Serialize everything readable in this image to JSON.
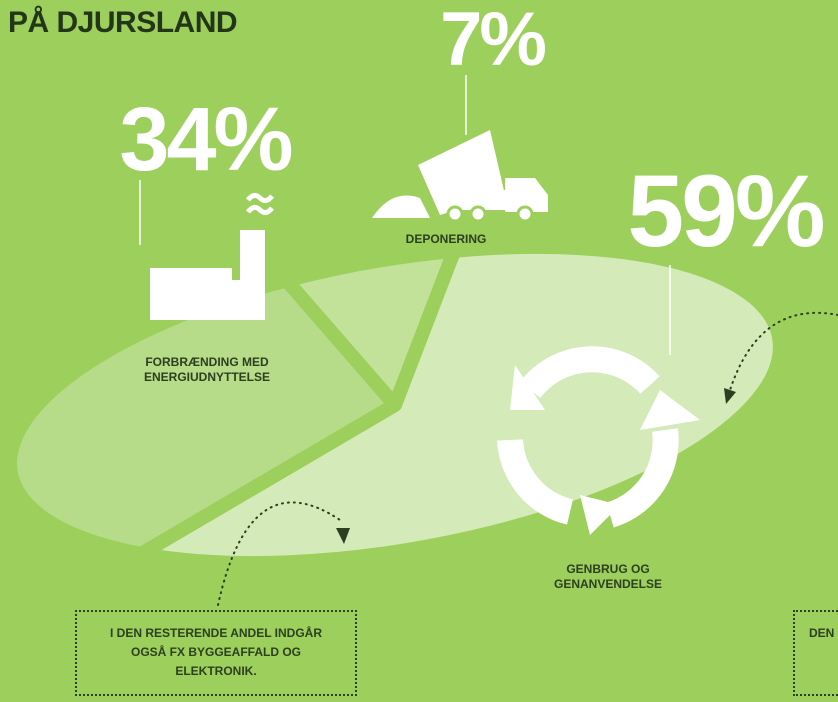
{
  "chart_data": {
    "type": "pie",
    "title": "PÅ DJURSLAND",
    "categories": [
      "FORBRÆNDING MED ENERGIUDNYTTELSE",
      "DEPONERING",
      "GENBRUG OG GENANVENDELSE"
    ],
    "values": [
      34,
      7,
      59
    ],
    "value_labels": [
      "34%",
      "7%",
      "59%"
    ],
    "colors": [
      "#b6dc89",
      "#c2e29a",
      "#d4eab8"
    ],
    "annotations": [
      "I DEN RESTERENDE ANDEL INDGÅR OGSÅ FX BYGGEAFFALD OG ELEKTRONIK.",
      "DEN"
    ]
  }
}
